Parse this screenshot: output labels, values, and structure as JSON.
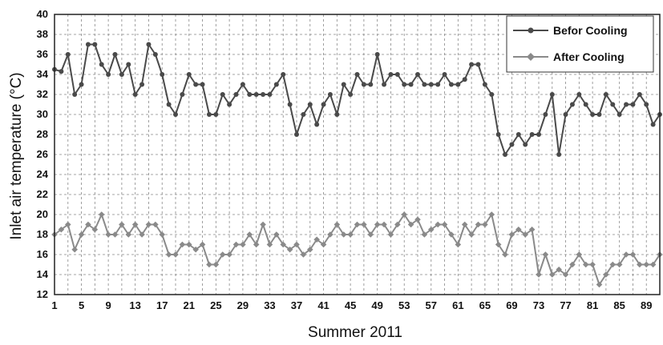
{
  "chart_data": {
    "type": "line",
    "xlabel": "Summer 2011",
    "ylabel": "Inlet air temperature (°C)",
    "xlim": [
      1,
      91
    ],
    "ylim": [
      12,
      40
    ],
    "y_ticks": [
      12,
      14,
      16,
      18,
      20,
      22,
      24,
      26,
      28,
      30,
      32,
      34,
      36,
      38,
      40
    ],
    "x_ticks": [
      1,
      5,
      9,
      13,
      17,
      21,
      25,
      29,
      33,
      37,
      41,
      45,
      49,
      53,
      57,
      61,
      65,
      69,
      73,
      77,
      81,
      85,
      89
    ],
    "grid": true,
    "legend_position": "top-right",
    "x": [
      1,
      2,
      3,
      4,
      5,
      6,
      7,
      8,
      9,
      10,
      11,
      12,
      13,
      14,
      15,
      16,
      17,
      18,
      19,
      20,
      21,
      22,
      23,
      24,
      25,
      26,
      27,
      28,
      29,
      30,
      31,
      32,
      33,
      34,
      35,
      36,
      37,
      38,
      39,
      40,
      41,
      42,
      43,
      44,
      45,
      46,
      47,
      48,
      49,
      50,
      51,
      52,
      53,
      54,
      55,
      56,
      57,
      58,
      59,
      60,
      61,
      62,
      63,
      64,
      65,
      66,
      67,
      68,
      69,
      70,
      71,
      72,
      73,
      74,
      75,
      76,
      77,
      78,
      79,
      80,
      81,
      82,
      83,
      84,
      85,
      86,
      87,
      88,
      89,
      90,
      91
    ],
    "series": [
      {
        "name": "Befor Cooling",
        "color": "#4a4a4a",
        "values": [
          34.5,
          34.3,
          36,
          32,
          33,
          37,
          37,
          35,
          34,
          36,
          34,
          35,
          32,
          33,
          37,
          36,
          34,
          31,
          30,
          32,
          34,
          33,
          33,
          30,
          30,
          32,
          31,
          32,
          33,
          32,
          32,
          32,
          32,
          33,
          34,
          31,
          28,
          30,
          31,
          29,
          31,
          32,
          30,
          33,
          32,
          34,
          33,
          33,
          36,
          33,
          34,
          34,
          33,
          33,
          34,
          33,
          33,
          33,
          34,
          33,
          33,
          33.5,
          35,
          35,
          33,
          32,
          28,
          26,
          27,
          28,
          27,
          28,
          28,
          30,
          32,
          26,
          30,
          31,
          32,
          31,
          30,
          30,
          32,
          31,
          30,
          31,
          31,
          32,
          31,
          29,
          30
        ]
      },
      {
        "name": "After Cooling",
        "color": "#8a8a8a",
        "values": [
          18,
          18.5,
          19,
          16.5,
          18,
          19,
          18.5,
          20,
          18,
          18,
          19,
          18,
          19,
          18,
          19,
          19,
          18,
          16,
          16,
          17,
          17,
          16.5,
          17,
          15,
          15,
          16,
          16,
          17,
          17,
          18,
          17,
          19,
          17,
          18,
          17,
          16.5,
          17,
          16,
          16.5,
          17.5,
          17,
          18,
          19,
          18,
          18,
          19,
          19,
          18,
          19,
          19,
          18,
          19,
          20,
          19,
          19.5,
          18,
          18.5,
          19,
          19,
          18,
          17,
          19,
          18,
          19,
          19,
          20,
          17,
          16,
          18,
          18.5,
          18,
          18.5,
          14,
          16,
          14,
          14.5,
          14,
          15,
          16,
          15,
          15,
          13,
          14,
          15,
          15,
          16,
          16,
          15,
          15,
          15,
          16
        ]
      }
    ]
  }
}
